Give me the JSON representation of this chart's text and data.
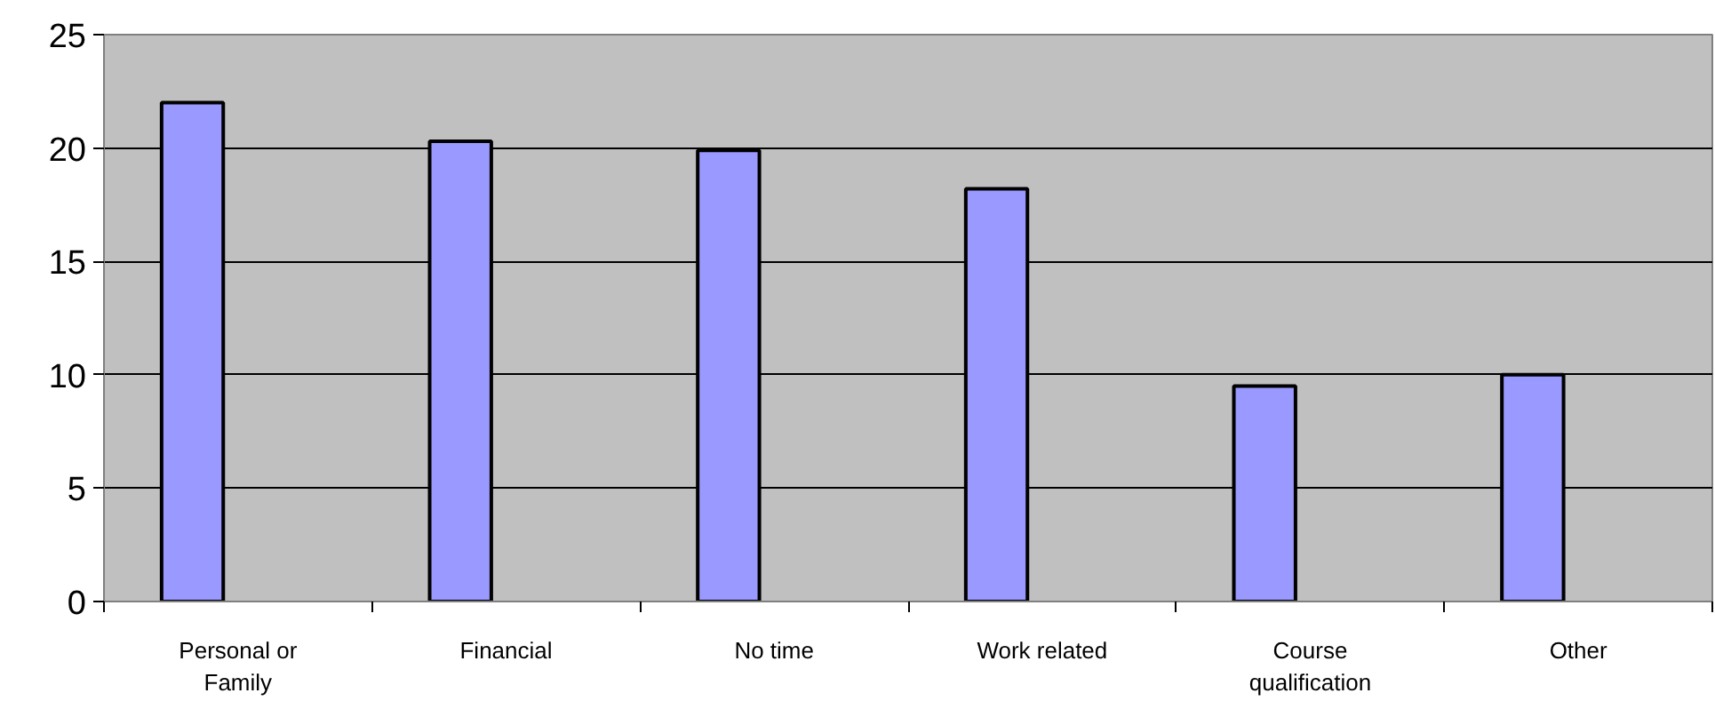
{
  "chart_data": {
    "type": "bar",
    "categories": [
      "Personal or Family",
      "Financial",
      "No time",
      "Work related",
      "Course qualification",
      "Other"
    ],
    "values": [
      22.0,
      20.3,
      19.9,
      18.2,
      9.5,
      10.0
    ],
    "color": "#9999ff",
    "ylim": [
      0,
      25
    ],
    "yticks": [
      0,
      5,
      10,
      15,
      20,
      25
    ],
    "grid": "y"
  }
}
